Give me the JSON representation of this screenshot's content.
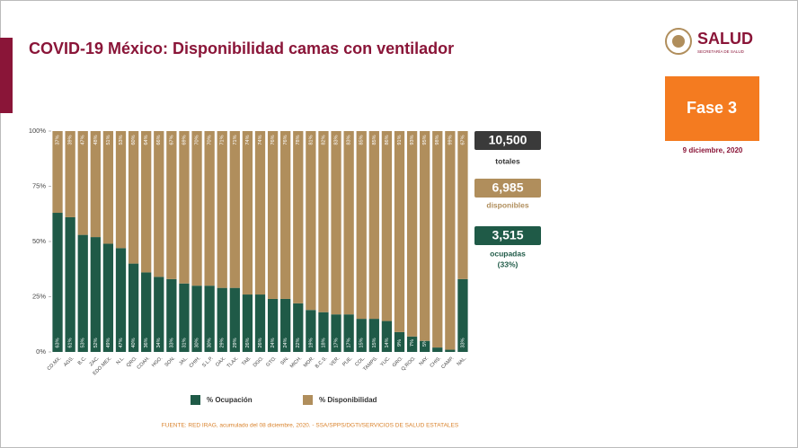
{
  "header": {
    "title": "COVID-19 México: Disponibilidad camas con ventilador",
    "logo": "SALUD",
    "logo_subtitle": "SECRETARÍA DE SALUD",
    "phase": "Fase 3",
    "date": "9 diciembre, 2020"
  },
  "summary": {
    "total": "10,500",
    "total_label": "totales",
    "available": "6,985",
    "available_label": "disponibles",
    "occupied": "3,515",
    "occupied_label": "ocupadas",
    "occupied_pct": "(33%)"
  },
  "footnote": "FUENTE: RED IRAG, acumulado del 08 diciembre, 2020. - SSA/SPPS/DGTI/SERVICIOS DE SALUD ESTATALES",
  "chart_data": {
    "type": "stacked_bar",
    "categories": [
      "CD.MX.",
      "AGS.",
      "B.C.",
      "ZAC.",
      "EDO.MEX.",
      "N.L.",
      "QRO.",
      "COAH.",
      "HGO.",
      "SON.",
      "JAL.",
      "CHIH.",
      "S.L.P.",
      "OAX.",
      "TLAX.",
      "TAB.",
      "DGO.",
      "GTO.",
      "SIN.",
      "MICH.",
      "MOR.",
      "B.C.S.",
      "VER.",
      "PUE.",
      "COL.",
      "TAMPS.",
      "YUC.",
      "GRO.",
      "Q.ROO.",
      "NAY.",
      "CHIS.",
      "CAMP.",
      "NAL."
    ],
    "series": [
      {
        "name": "% Ocupación",
        "color": "#1f5a47",
        "values": [
          63,
          61,
          53,
          52,
          49,
          47,
          40,
          36,
          34,
          33,
          31,
          30,
          30,
          29,
          29,
          26,
          26,
          24,
          24,
          22,
          19,
          18,
          17,
          17,
          15,
          15,
          14,
          9,
          7,
          5,
          2,
          1,
          33
        ],
        "value_labels": [
          "63%",
          "61%",
          "53%",
          "52%",
          "49%",
          "47%",
          "40%",
          "36%",
          "34%",
          "33%",
          "31%",
          "30%",
          "30%",
          "29%",
          "29%",
          "26%",
          "26%",
          "24%",
          "24%",
          "22%",
          "19%",
          "18%",
          "17%",
          "17%",
          "15%",
          "15%",
          "14%",
          "9%",
          "7%",
          "5%",
          "2%",
          "1%",
          "33%"
        ]
      },
      {
        "name": "% Disponibilidad",
        "color": "#b08e5c",
        "values": [
          37,
          39,
          47,
          48,
          51,
          53,
          60,
          64,
          66,
          67,
          69,
          70,
          70,
          71,
          71,
          74,
          74,
          76,
          76,
          78,
          81,
          82,
          83,
          83,
          85,
          85,
          86,
          91,
          93,
          95,
          98,
          99,
          67
        ],
        "value_labels": [
          "37%",
          "39%",
          "47%",
          "48%",
          "51%",
          "53%",
          "60%",
          "64%",
          "66%",
          "67%",
          "69%",
          "70%",
          "70%",
          "71%",
          "71%",
          "74%",
          "74%",
          "76%",
          "76%",
          "78%",
          "81%",
          "82%",
          "83%",
          "83%",
          "85%",
          "85%",
          "86%",
          "91%",
          "93%",
          "95%",
          "98%",
          "99%",
          "67%"
        ]
      }
    ],
    "ylim": [
      0,
      100
    ],
    "yticks": [
      {
        "value": 0,
        "label": "0%"
      },
      {
        "value": 25,
        "label": "25%"
      },
      {
        "value": 50,
        "label": "50%"
      },
      {
        "value": 75,
        "label": "75%"
      },
      {
        "value": 100,
        "label": "100%"
      }
    ]
  }
}
